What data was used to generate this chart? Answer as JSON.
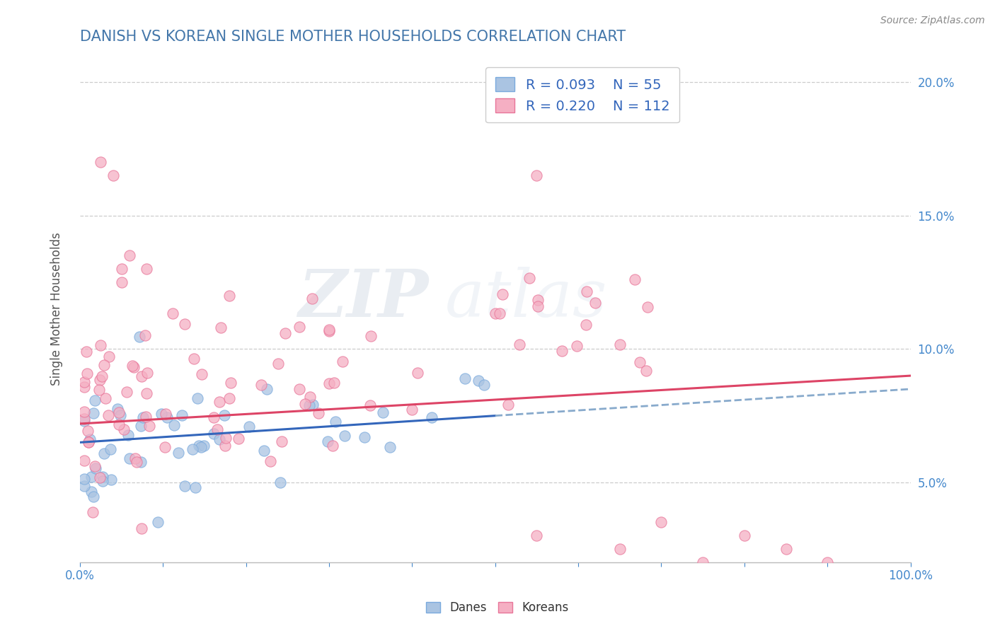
{
  "title": "DANISH VS KOREAN SINGLE MOTHER HOUSEHOLDS CORRELATION CHART",
  "source": "Source: ZipAtlas.com",
  "ylabel": "Single Mother Households",
  "dane_R": 0.093,
  "dane_N": 55,
  "korean_R": 0.22,
  "korean_N": 112,
  "dane_color": "#aac4e2",
  "korean_color": "#f5afc3",
  "dane_edge_color": "#7aaadd",
  "korean_edge_color": "#e87599",
  "trend_dane_color": "#3366bb",
  "trend_korean_color": "#dd4466",
  "trend_dash_color": "#88aacc",
  "title_color": "#4477aa",
  "legend_text_color": "#3366bb",
  "watermark_zip": "ZIP",
  "watermark_atlas": "atlas",
  "background_color": "#ffffff",
  "grid_color": "#cccccc",
  "ytick_color": "#4488cc",
  "xtick_color": "#4488cc",
  "source_color": "#888888",
  "ylabel_color": "#555555"
}
